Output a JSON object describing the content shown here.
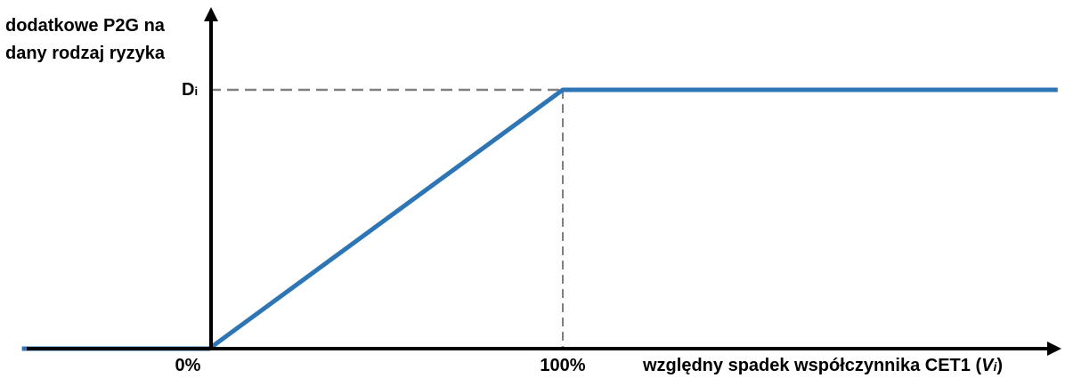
{
  "chart_data": {
    "type": "line",
    "ylabel": [
      "dodatkowe P2G na",
      "dany rodzaj ryzyka"
    ],
    "xlabel": {
      "prefix": "względny spadek współczynnika CET1 (",
      "var": "V",
      "sub": "i",
      "suffix": ")"
    },
    "x_ticks": [
      "0%",
      "100%"
    ],
    "y_tick": {
      "main": "D",
      "sub": "i"
    },
    "series": [
      {
        "x": [
          -0.53,
          0,
          1,
          2.4
        ],
        "y": [
          0,
          0,
          1,
          1
        ]
      }
    ],
    "xlim": [
      -0.53,
      2.4
    ],
    "ylim": [
      0,
      1
    ],
    "reference_lines": [
      "x=1",
      "y=1"
    ],
    "line_color": "#2E75B6",
    "axis_color": "#000000",
    "dash_color": "#808080"
  }
}
